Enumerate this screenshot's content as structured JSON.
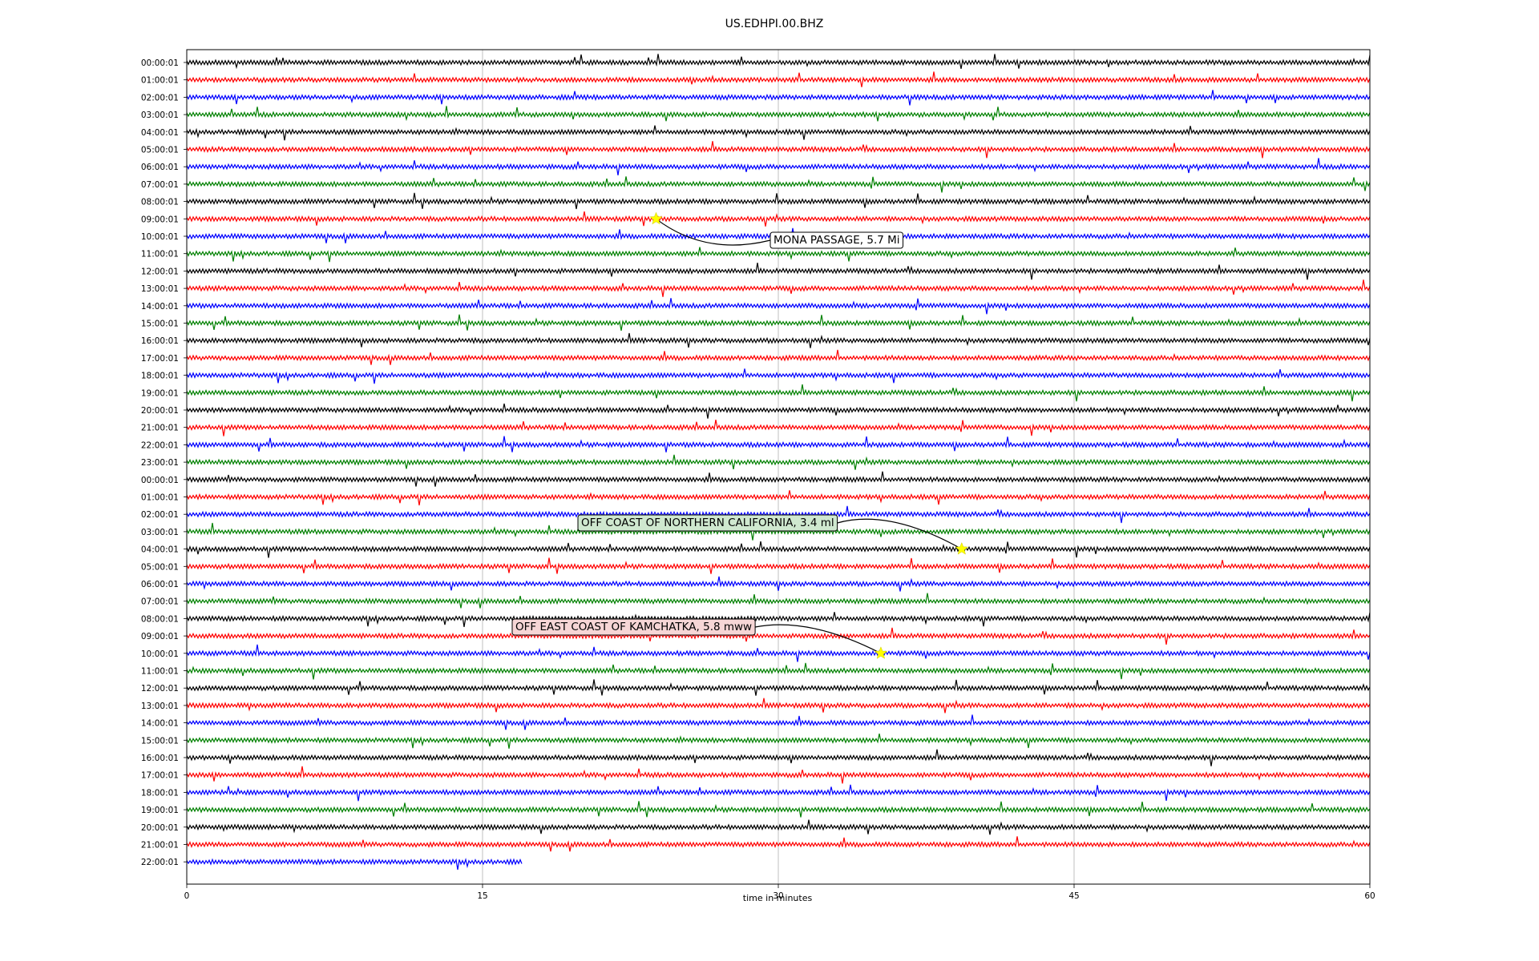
{
  "chart_data": {
    "type": "line",
    "title": "US.EDHPI.00.BHZ",
    "xlabel": "time in minutes",
    "ylabel": "",
    "xlim": [
      0,
      60
    ],
    "x_ticks": [
      "0",
      "15",
      "30",
      "45",
      "60"
    ],
    "grid": "vertical at 15-minute intervals",
    "trace_colors": [
      "#000000",
      "#ff0000",
      "#0000ff",
      "#008000"
    ],
    "row_labels": [
      "00:00:01",
      "01:00:01",
      "02:00:01",
      "03:00:01",
      "04:00:01",
      "05:00:01",
      "06:00:01",
      "07:00:01",
      "08:00:01",
      "09:00:01",
      "10:00:01",
      "11:00:01",
      "12:00:01",
      "13:00:01",
      "14:00:01",
      "15:00:01",
      "16:00:01",
      "17:00:01",
      "18:00:01",
      "19:00:01",
      "20:00:01",
      "21:00:01",
      "22:00:01",
      "23:00:01",
      "00:00:01",
      "01:00:01",
      "02:00:01",
      "03:00:01",
      "04:00:01",
      "05:00:01",
      "06:00:01",
      "07:00:01",
      "08:00:01",
      "09:00:01",
      "10:00:01",
      "11:00:01",
      "12:00:01",
      "13:00:01",
      "14:00:01",
      "15:00:01",
      "16:00:01",
      "17:00:01",
      "18:00:01",
      "19:00:01",
      "20:00:01",
      "21:00:01",
      "22:00:01"
    ],
    "last_row_end_minute": 17,
    "events": [
      {
        "label": "MONA PASSAGE, 5.7 Mi",
        "row": 9,
        "minute": 23.8,
        "box_color": "#ffffff"
      },
      {
        "label": "OFF COAST OF NORTHERN CALIFORNIA, 3.4 ml",
        "row": 28,
        "minute": 39.3,
        "box_color": "#cfe8cf"
      },
      {
        "label": "OFF EAST COAST OF KAMCHATKA, 5.8 mww",
        "row": 34,
        "minute": 35.2,
        "box_color": "#f6d6d6"
      }
    ],
    "marker_color": "#ffff00"
  }
}
